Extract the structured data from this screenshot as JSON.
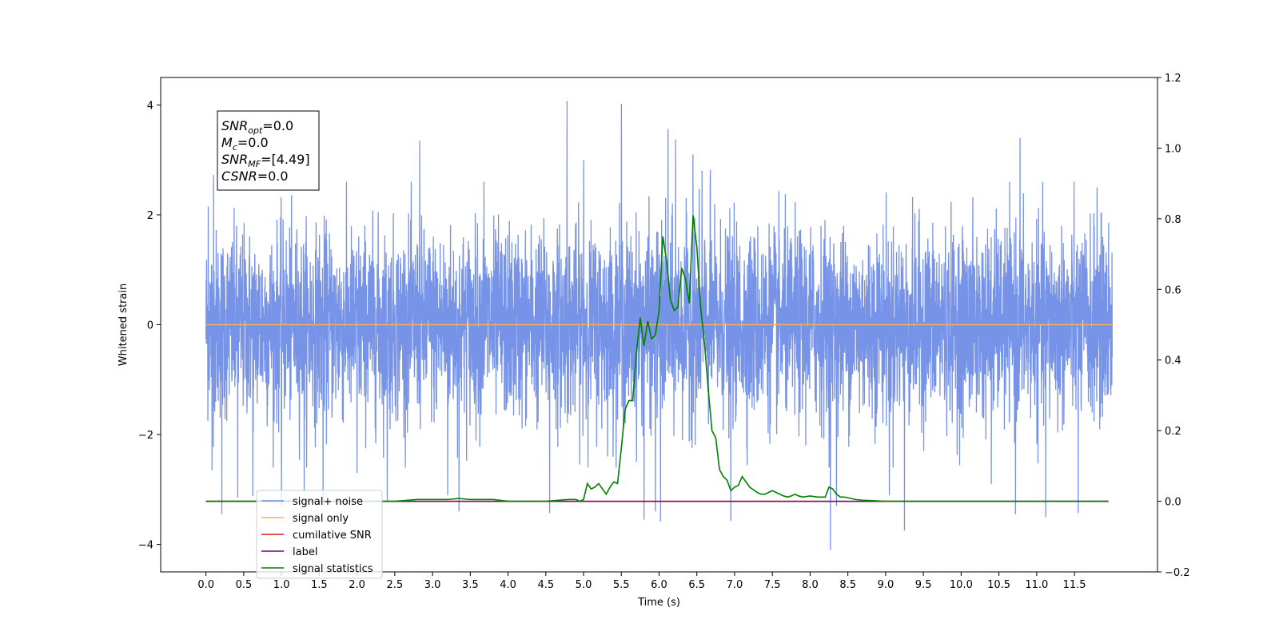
{
  "chart_data": {
    "type": "line",
    "xlabel": "Time (s)",
    "ylabel": "Whitened strain",
    "xlim": [
      -0.6,
      12.6
    ],
    "ylim": [
      -4.5,
      4.5
    ],
    "y2lim": [
      -0.2,
      1.2
    ],
    "x_ticks": [
      "0.0",
      "0.5",
      "1.0",
      "1.5",
      "2.0",
      "2.5",
      "3.0",
      "3.5",
      "4.0",
      "4.5",
      "5.0",
      "5.5",
      "6.0",
      "6.5",
      "7.0",
      "7.5",
      "8.0",
      "8.5",
      "9.0",
      "9.5",
      "10.0",
      "10.5",
      "11.0",
      "11.5"
    ],
    "y_ticks": [
      "4",
      "2",
      "0",
      "−2",
      "−4"
    ],
    "y_tick_values": [
      4,
      2,
      0,
      -2,
      -4
    ],
    "y2_ticks": [
      "1.2",
      "1.0",
      "0.8",
      "0.6",
      "0.4",
      "0.2",
      "0.0",
      "−0.2"
    ],
    "y2_tick_values": [
      1.2,
      1.0,
      0.8,
      0.6,
      0.4,
      0.2,
      0.0,
      -0.2
    ],
    "series": [
      {
        "name": "signal+ noise",
        "color": "#6b8ae5",
        "axis": "left",
        "x_range": [
          0.0,
          12.0
        ],
        "typical_range": [
          -1.0,
          1.0
        ],
        "max": 4.07,
        "min": -4.1,
        "spikes": [
          [
            0.03,
            2.15
          ],
          [
            0.08,
            -2.65
          ],
          [
            0.1,
            2.73
          ],
          [
            0.21,
            -3.45
          ],
          [
            0.42,
            -3.15
          ],
          [
            0.62,
            -3.12
          ],
          [
            1.0,
            -3.3
          ],
          [
            1.3,
            -3.05
          ],
          [
            1.55,
            -3.3
          ],
          [
            2.0,
            -2.7
          ],
          [
            2.4,
            -3.2
          ],
          [
            2.83,
            3.35
          ],
          [
            3.2,
            -3.1
          ],
          [
            3.35,
            -3.4
          ],
          [
            3.68,
            2.6
          ],
          [
            4.55,
            -3.43
          ],
          [
            4.78,
            4.07
          ],
          [
            5.0,
            3.0
          ],
          [
            5.5,
            4.02
          ],
          [
            5.8,
            -3.55
          ],
          [
            5.95,
            -3.4
          ],
          [
            6.02,
            -3.58
          ],
          [
            6.12,
            3.56
          ],
          [
            6.22,
            3.37
          ],
          [
            6.45,
            3.1
          ],
          [
            6.57,
            2.8
          ],
          [
            6.68,
            2.82
          ],
          [
            6.95,
            -3.57
          ],
          [
            8.27,
            -4.1
          ],
          [
            8.35,
            -3.3
          ],
          [
            9.05,
            -3.1
          ],
          [
            9.25,
            -3.75
          ],
          [
            10.4,
            -2.9
          ],
          [
            10.72,
            -3.45
          ],
          [
            10.78,
            3.4
          ],
          [
            11.12,
            -3.5
          ],
          [
            11.55,
            -3.43
          ],
          [
            11.8,
            2.5
          ]
        ]
      },
      {
        "name": "signal only",
        "color": "#f5b15a",
        "axis": "left",
        "x": [
          0.0,
          12.0
        ],
        "y": [
          0.0,
          0.0
        ]
      },
      {
        "name": "cumilative SNR",
        "color": "#e31a1c",
        "axis": "right",
        "x": [
          0.0,
          11.95
        ],
        "y": [
          0.0,
          0.0
        ]
      },
      {
        "name": "label",
        "color": "#6a0f75",
        "axis": "right",
        "x": [
          0.0,
          11.95
        ],
        "y": [
          0.0,
          0.0
        ]
      },
      {
        "name": "signal statistics",
        "color": "#008000",
        "axis": "right",
        "x": [
          0.0,
          1.0,
          2.0,
          2.5,
          2.8,
          3.0,
          3.2,
          3.35,
          3.5,
          3.8,
          4.0,
          4.3,
          4.5,
          4.8,
          4.9,
          4.95,
          5.0,
          5.05,
          5.1,
          5.15,
          5.2,
          5.3,
          5.35,
          5.4,
          5.45,
          5.5,
          5.55,
          5.6,
          5.65,
          5.7,
          5.75,
          5.8,
          5.85,
          5.9,
          5.95,
          6.0,
          6.05,
          6.1,
          6.15,
          6.2,
          6.25,
          6.3,
          6.35,
          6.4,
          6.45,
          6.5,
          6.55,
          6.6,
          6.65,
          6.7,
          6.75,
          6.8,
          6.85,
          6.9,
          6.95,
          7.0,
          7.05,
          7.1,
          7.2,
          7.3,
          7.35,
          7.4,
          7.45,
          7.5,
          7.55,
          7.6,
          7.65,
          7.7,
          7.75,
          7.8,
          7.85,
          7.9,
          8.0,
          8.1,
          8.2,
          8.25,
          8.3,
          8.35,
          8.4,
          8.45,
          8.5,
          8.6,
          8.7,
          8.8,
          8.9,
          9.0,
          9.2,
          9.5,
          10.0,
          11.0,
          11.95
        ],
        "y": [
          0.0,
          0.0,
          0.0,
          0.0,
          0.005,
          0.005,
          0.005,
          0.008,
          0.005,
          0.005,
          0.0,
          0.0,
          0.0,
          0.005,
          0.005,
          0.0,
          0.005,
          0.05,
          0.035,
          0.04,
          0.05,
          0.02,
          0.04,
          0.055,
          0.05,
          0.15,
          0.26,
          0.285,
          0.285,
          0.42,
          0.52,
          0.44,
          0.51,
          0.46,
          0.47,
          0.54,
          0.75,
          0.68,
          0.57,
          0.54,
          0.55,
          0.66,
          0.63,
          0.56,
          0.81,
          0.72,
          0.55,
          0.45,
          0.32,
          0.2,
          0.18,
          0.09,
          0.07,
          0.06,
          0.03,
          0.04,
          0.045,
          0.07,
          0.04,
          0.025,
          0.02,
          0.02,
          0.025,
          0.03,
          0.025,
          0.02,
          0.015,
          0.012,
          0.015,
          0.02,
          0.015,
          0.012,
          0.015,
          0.012,
          0.012,
          0.04,
          0.035,
          0.02,
          0.012,
          0.012,
          0.01,
          0.005,
          0.003,
          0.002,
          0.001,
          0.0,
          0.0,
          0.0,
          0.0,
          0.0,
          0.0
        ]
      }
    ],
    "annotation": [
      {
        "base": "SNR",
        "sub": "opt",
        "rest": "=0.0"
      },
      {
        "base": "M",
        "sub": "c",
        "rest": "=0.0"
      },
      {
        "base": "SNR",
        "sub": "MF",
        "rest": "=[4.49]"
      },
      {
        "base": "CSNR",
        "sub": "",
        "rest": "=0.0"
      }
    ],
    "legend": {
      "placement": "lower-left",
      "entries": [
        "signal+ noise",
        "signal only",
        "cumilative SNR",
        "label",
        "signal statistics"
      ]
    }
  }
}
